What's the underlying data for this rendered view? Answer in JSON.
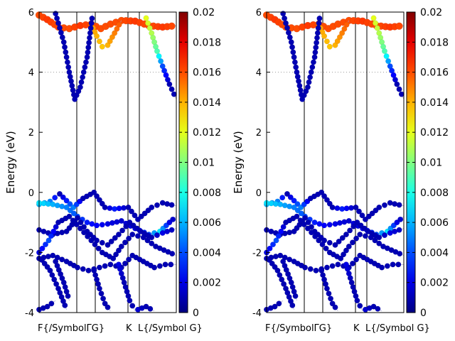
{
  "chart_data": [
    {
      "type": "scatter",
      "name": "band-structure-left",
      "ylabel": "Energy (eV)",
      "ylim": [
        -4,
        6
      ],
      "yticks": [
        "-4",
        "-2",
        "0",
        "2",
        "4",
        "6"
      ],
      "xticks": [
        "F{/SymbolΓG}",
        "K",
        "L{/Symbol G}"
      ],
      "grid": "horizontal dotted at 4",
      "colorbar": {
        "range": [
          0,
          0.02
        ],
        "ticks": [
          "0",
          "0.002",
          "0.004",
          "0.006",
          "0.008",
          "0.01",
          "0.012",
          "0.014",
          "0.016",
          "0.018",
          "0.02"
        ],
        "colormap": "jet"
      }
    },
    {
      "type": "scatter",
      "name": "band-structure-right",
      "ylabel": "Energy (eV)",
      "ylim": [
        -4,
        6
      ],
      "yticks": [
        "-4",
        "-2",
        "0",
        "2",
        "4",
        "6"
      ],
      "xticks": [
        "F{/SymbolΓG}",
        "K",
        "L{/Symbol G}"
      ],
      "grid": "horizontal dotted at 4",
      "colorbar": {
        "range": [
          0,
          0.02
        ],
        "ticks": [
          "0",
          "0.002",
          "0.004",
          "0.006",
          "0.008",
          "0.01",
          "0.012",
          "0.014",
          "0.016",
          "0.018",
          "0.02"
        ],
        "colormap": "jet"
      }
    }
  ]
}
